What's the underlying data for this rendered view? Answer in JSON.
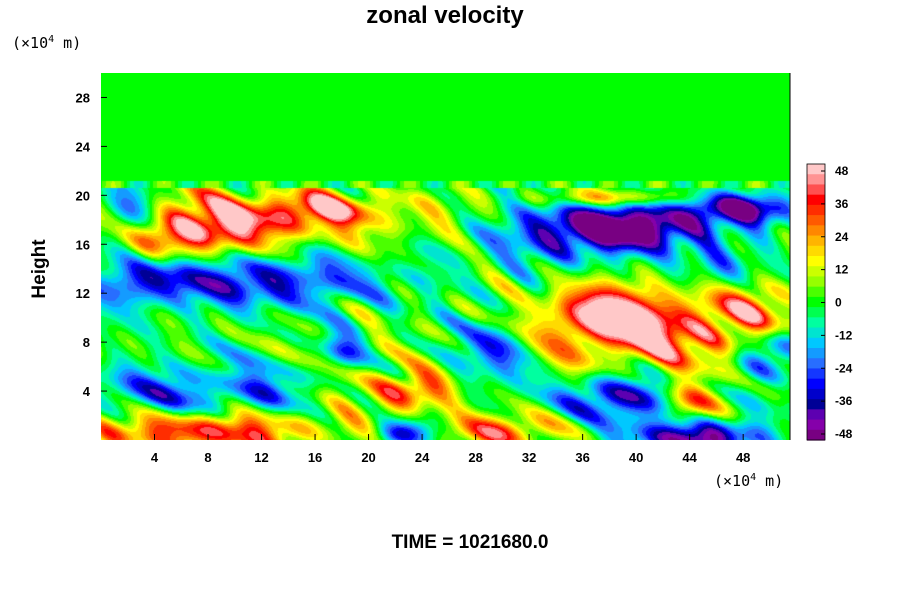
{
  "chart_data": {
    "type": "heatmap",
    "title": "zonal velocity",
    "ylabel": "Height",
    "x_unit": "(×10^4 m)",
    "y_unit": "(×10^4 m)",
    "xlim": [
      0,
      51.5
    ],
    "ylim": [
      0,
      30
    ],
    "x_ticks": [
      "4",
      "8",
      "12",
      "16",
      "20",
      "24",
      "28",
      "32",
      "36",
      "40",
      "44",
      "48"
    ],
    "y_ticks": [
      "4",
      "8",
      "12",
      "16",
      "20",
      "24",
      "28"
    ],
    "colorbar_ticks": [
      "48",
      "36",
      "24",
      "12",
      "0",
      "-12",
      "-24",
      "-36",
      "-48"
    ],
    "colorbar_range": [
      -48,
      48
    ],
    "field_features": [
      {
        "x": 10,
        "y": 18,
        "sx": 5,
        "sy": 1.6,
        "value": 44
      },
      {
        "x": 17,
        "y": 19,
        "sx": 3,
        "sy": 0.9,
        "value": 30
      },
      {
        "x": 5,
        "y": 16.5,
        "sx": 3,
        "sy": 1.2,
        "value": 28
      },
      {
        "x": 11,
        "y": 13,
        "sx": 7,
        "sy": 1.5,
        "value": -36
      },
      {
        "x": 3,
        "y": 13,
        "sx": 2,
        "sy": 1.3,
        "value": -20
      },
      {
        "x": 24,
        "y": 18,
        "sx": 4,
        "sy": 1.5,
        "value": 12
      },
      {
        "x": 35,
        "y": 17,
        "sx": 5,
        "sy": 1.8,
        "value": -30
      },
      {
        "x": 40,
        "y": 17.5,
        "sx": 4,
        "sy": 1.3,
        "value": -44
      },
      {
        "x": 48,
        "y": 19,
        "sx": 3,
        "sy": 0.9,
        "value": -48
      },
      {
        "x": 38,
        "y": 19.8,
        "sx": 4,
        "sy": 0.5,
        "value": 30
      },
      {
        "x": 46,
        "y": 14,
        "sx": 2,
        "sy": 1.5,
        "value": -20
      },
      {
        "x": 41,
        "y": 9.2,
        "sx": 5.5,
        "sy": 2.3,
        "value": 48
      },
      {
        "x": 37,
        "y": 10.5,
        "sx": 2.5,
        "sy": 1.5,
        "value": 28
      },
      {
        "x": 29.5,
        "y": 7.5,
        "sx": 2.2,
        "sy": 1.8,
        "value": -26
      },
      {
        "x": 18,
        "y": 7,
        "sx": 1.3,
        "sy": 1.3,
        "value": -28
      },
      {
        "x": 23,
        "y": 4,
        "sx": 2,
        "sy": 1.2,
        "value": 38
      },
      {
        "x": 19,
        "y": 6,
        "sx": 2,
        "sy": 1.5,
        "value": 12
      },
      {
        "x": 6,
        "y": 4,
        "sx": 5,
        "sy": 1.6,
        "value": -26
      },
      {
        "x": 12,
        "y": 3.5,
        "sx": 2,
        "sy": 1.5,
        "value": -12
      },
      {
        "x": 38.5,
        "y": 3.5,
        "sx": 3,
        "sy": 1.4,
        "value": -40
      },
      {
        "x": 44,
        "y": 3,
        "sx": 1.5,
        "sy": 1.2,
        "value": 32
      },
      {
        "x": 50,
        "y": 7,
        "sx": 1.5,
        "sy": 1.5,
        "value": -32
      },
      {
        "x": 8,
        "y": 0.8,
        "sx": 6,
        "sy": 1.2,
        "value": 44
      },
      {
        "x": 30,
        "y": 0.8,
        "sx": 3,
        "sy": 1.0,
        "value": 34
      },
      {
        "x": 44.5,
        "y": 0.2,
        "sx": 3.5,
        "sy": 1.1,
        "value": -50
      },
      {
        "x": 22.5,
        "y": 0.5,
        "sx": 1.5,
        "sy": 0.8,
        "value": -36
      },
      {
        "x": 2,
        "y": 18,
        "sx": 1.5,
        "sy": 1.8,
        "value": -30
      },
      {
        "x": 49,
        "y": 11,
        "sx": 2,
        "sy": 1.5,
        "value": 20
      }
    ]
  },
  "footer": {
    "label": "TIME = 1021680.0"
  }
}
